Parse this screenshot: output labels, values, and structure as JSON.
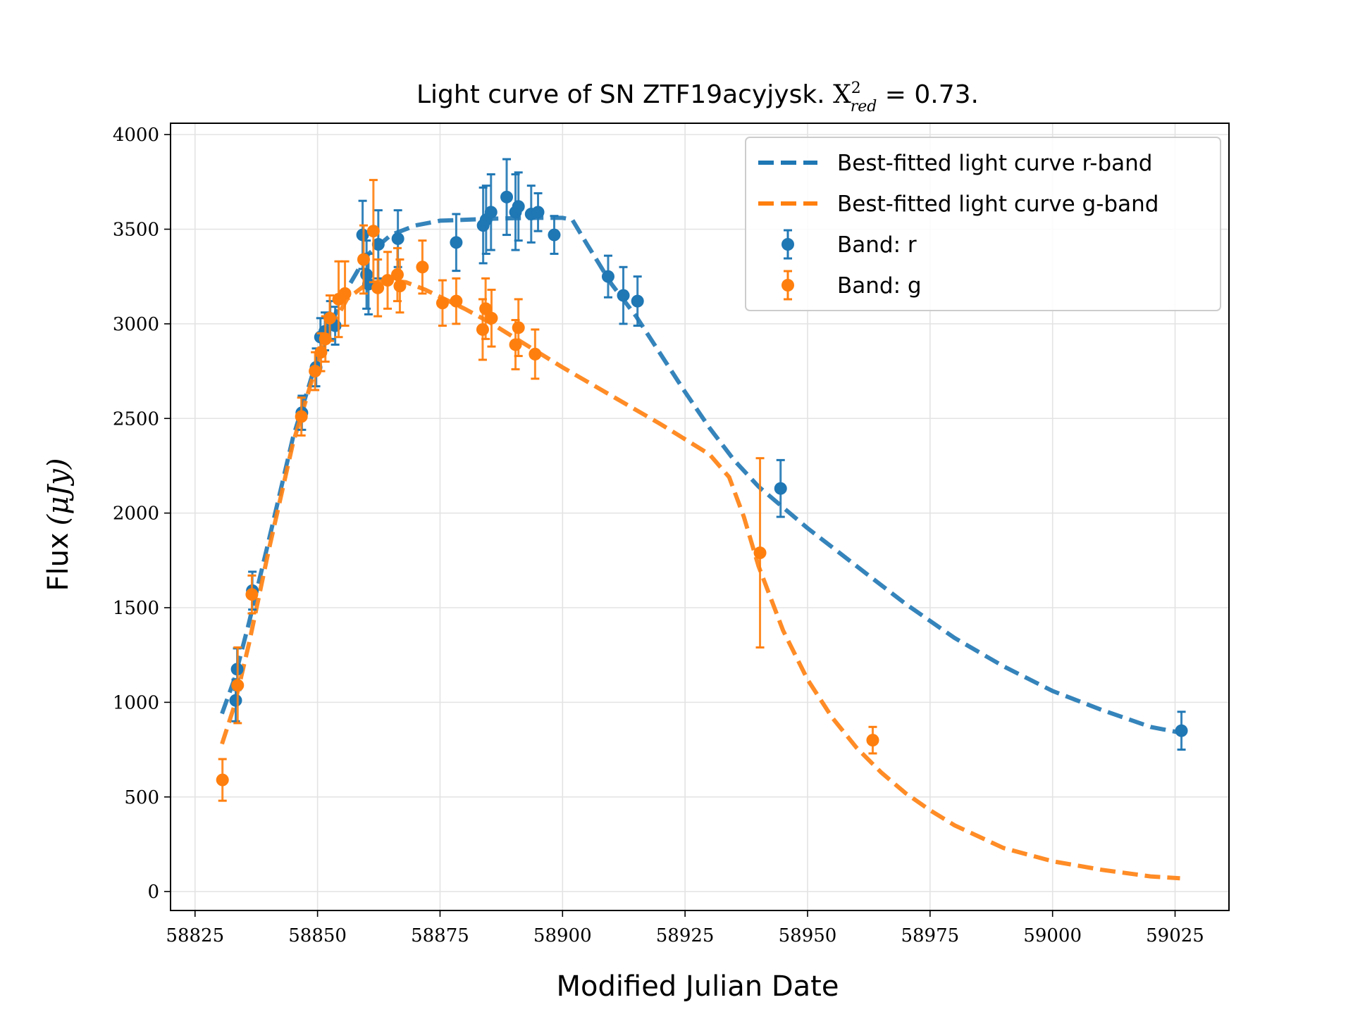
{
  "chart_data": {
    "type": "scatter",
    "title": "Light curve of SN ZTF19acyjysk. ",
    "title_math": {
      "symbol": "X",
      "sup": "2",
      "sub": "red",
      "value": " = 0.73."
    },
    "xlabel": "Modified Julian Date",
    "ylabel": "Flux",
    "ylabel_unit": "(μJy)",
    "xlim": [
      58820,
      59036
    ],
    "ylim": [
      -100,
      4060
    ],
    "xticks": [
      58825,
      58850,
      58875,
      58900,
      58925,
      58950,
      58975,
      59000,
      59025
    ],
    "yticks": [
      0,
      500,
      1000,
      1500,
      2000,
      2500,
      3000,
      3500,
      4000
    ],
    "grid": true,
    "legend_position": "top-right",
    "colors": {
      "r": "#1f77b4",
      "g": "#ff7f0e"
    },
    "series": [
      {
        "name": "Best-fitted light curve r-band",
        "kind": "line",
        "style": "dashed",
        "color": "#1f77b4",
        "x": [
          58830.5,
          58833,
          58836,
          58840,
          58845,
          58850,
          58855,
          58860,
          58865,
          58870,
          58875,
          58880,
          58885,
          58890,
          58895,
          58900,
          58902,
          58905,
          58910,
          58915,
          58920,
          58925,
          58930,
          58935,
          58940,
          58945,
          58950,
          58960,
          58970,
          58980,
          58990,
          59000,
          59010,
          59020,
          59026
        ],
        "y": [
          940,
          1120,
          1420,
          1850,
          2400,
          2820,
          3140,
          3360,
          3470,
          3520,
          3545,
          3550,
          3555,
          3558,
          3560,
          3560,
          3550,
          3420,
          3210,
          3040,
          2840,
          2640,
          2450,
          2280,
          2140,
          2030,
          1920,
          1720,
          1520,
          1340,
          1190,
          1060,
          960,
          870,
          840
        ]
      },
      {
        "name": "Best-fitted light curve g-band",
        "kind": "line",
        "style": "dashed",
        "color": "#ff7f0e",
        "x": [
          58830.5,
          58833,
          58836,
          58840,
          58845,
          58850,
          58853,
          58856,
          58860,
          58864,
          58868,
          58872,
          58876,
          58880,
          58885,
          58890,
          58895,
          58900,
          58910,
          58920,
          58930,
          58934,
          58937,
          58940,
          58945,
          58950,
          58955,
          58960,
          58965,
          58970,
          58975,
          58980,
          58990,
          59000,
          59010,
          59020,
          59026
        ],
        "y": [
          780,
          980,
          1310,
          1800,
          2370,
          2800,
          2990,
          3130,
          3210,
          3230,
          3220,
          3180,
          3130,
          3080,
          3010,
          2930,
          2850,
          2770,
          2620,
          2470,
          2310,
          2190,
          1980,
          1720,
          1380,
          1120,
          920,
          760,
          630,
          520,
          430,
          350,
          230,
          160,
          115,
          80,
          70
        ]
      },
      {
        "name": "Band: r",
        "kind": "errorbar",
        "color": "#1f77b4",
        "points": [
          {
            "x": 58833.3,
            "y": 1010,
            "err": 110
          },
          {
            "x": 58833.6,
            "y": 1175,
            "err": 110
          },
          {
            "x": 58836.7,
            "y": 1590,
            "err": 100
          },
          {
            "x": 58846.8,
            "y": 2530,
            "err": 90
          },
          {
            "x": 58849.7,
            "y": 2770,
            "err": 100
          },
          {
            "x": 58850.6,
            "y": 2930,
            "err": 100
          },
          {
            "x": 58851.5,
            "y": 2960,
            "err": 100
          },
          {
            "x": 58852.6,
            "y": 3020,
            "err": 100
          },
          {
            "x": 58853.6,
            "y": 2990,
            "err": 100
          },
          {
            "x": 58859.2,
            "y": 3470,
            "err": 180
          },
          {
            "x": 58860.0,
            "y": 3260,
            "err": 180
          },
          {
            "x": 58860.4,
            "y": 3210,
            "err": 160
          },
          {
            "x": 58862.4,
            "y": 3420,
            "err": 180
          },
          {
            "x": 58866.4,
            "y": 3450,
            "err": 150
          },
          {
            "x": 58878.3,
            "y": 3430,
            "err": 150
          },
          {
            "x": 58883.8,
            "y": 3520,
            "err": 200
          },
          {
            "x": 58884.4,
            "y": 3550,
            "err": 180
          },
          {
            "x": 58885.4,
            "y": 3590,
            "err": 200
          },
          {
            "x": 58888.6,
            "y": 3670,
            "err": 200
          },
          {
            "x": 58890.4,
            "y": 3590,
            "err": 200
          },
          {
            "x": 58891.0,
            "y": 3620,
            "err": 180
          },
          {
            "x": 58893.6,
            "y": 3580,
            "err": 150
          },
          {
            "x": 58895.0,
            "y": 3590,
            "err": 100
          },
          {
            "x": 58898.3,
            "y": 3470,
            "err": 100
          },
          {
            "x": 58909.3,
            "y": 3250,
            "err": 110
          },
          {
            "x": 58912.4,
            "y": 3150,
            "err": 150
          },
          {
            "x": 58915.3,
            "y": 3120,
            "err": 130
          },
          {
            "x": 58944.5,
            "y": 2130,
            "err": 150
          },
          {
            "x": 59026.3,
            "y": 850,
            "err": 100
          }
        ]
      },
      {
        "name": "Band: g",
        "kind": "errorbar",
        "color": "#ff7f0e",
        "points": [
          {
            "x": 58830.6,
            "y": 590,
            "err": 110
          },
          {
            "x": 58833.7,
            "y": 1090,
            "err": 200
          },
          {
            "x": 58836.6,
            "y": 1570,
            "err": 100
          },
          {
            "x": 58846.7,
            "y": 2510,
            "err": 100
          },
          {
            "x": 58849.5,
            "y": 2750,
            "err": 100
          },
          {
            "x": 58850.7,
            "y": 2850,
            "err": 100
          },
          {
            "x": 58851.6,
            "y": 2920,
            "err": 120
          },
          {
            "x": 58852.5,
            "y": 3030,
            "err": 120
          },
          {
            "x": 58854.3,
            "y": 3130,
            "err": 200
          },
          {
            "x": 58855.6,
            "y": 3160,
            "err": 170
          },
          {
            "x": 58859.4,
            "y": 3340,
            "err": 180
          },
          {
            "x": 58861.4,
            "y": 3490,
            "err": 270
          },
          {
            "x": 58862.3,
            "y": 3190,
            "err": 150
          },
          {
            "x": 58864.3,
            "y": 3230,
            "err": 150
          },
          {
            "x": 58866.3,
            "y": 3260,
            "err": 140
          },
          {
            "x": 58866.8,
            "y": 3200,
            "err": 140
          },
          {
            "x": 58871.4,
            "y": 3300,
            "err": 140
          },
          {
            "x": 58875.5,
            "y": 3110,
            "err": 120
          },
          {
            "x": 58878.3,
            "y": 3120,
            "err": 120
          },
          {
            "x": 58883.7,
            "y": 2970,
            "err": 160
          },
          {
            "x": 58884.3,
            "y": 3080,
            "err": 160
          },
          {
            "x": 58885.5,
            "y": 3030,
            "err": 150
          },
          {
            "x": 58890.4,
            "y": 2890,
            "err": 130
          },
          {
            "x": 58891.0,
            "y": 2980,
            "err": 150
          },
          {
            "x": 58894.4,
            "y": 2840,
            "err": 130
          },
          {
            "x": 58940.3,
            "y": 1790,
            "err": 500
          },
          {
            "x": 58963.3,
            "y": 800,
            "err": 70
          }
        ]
      }
    ]
  }
}
